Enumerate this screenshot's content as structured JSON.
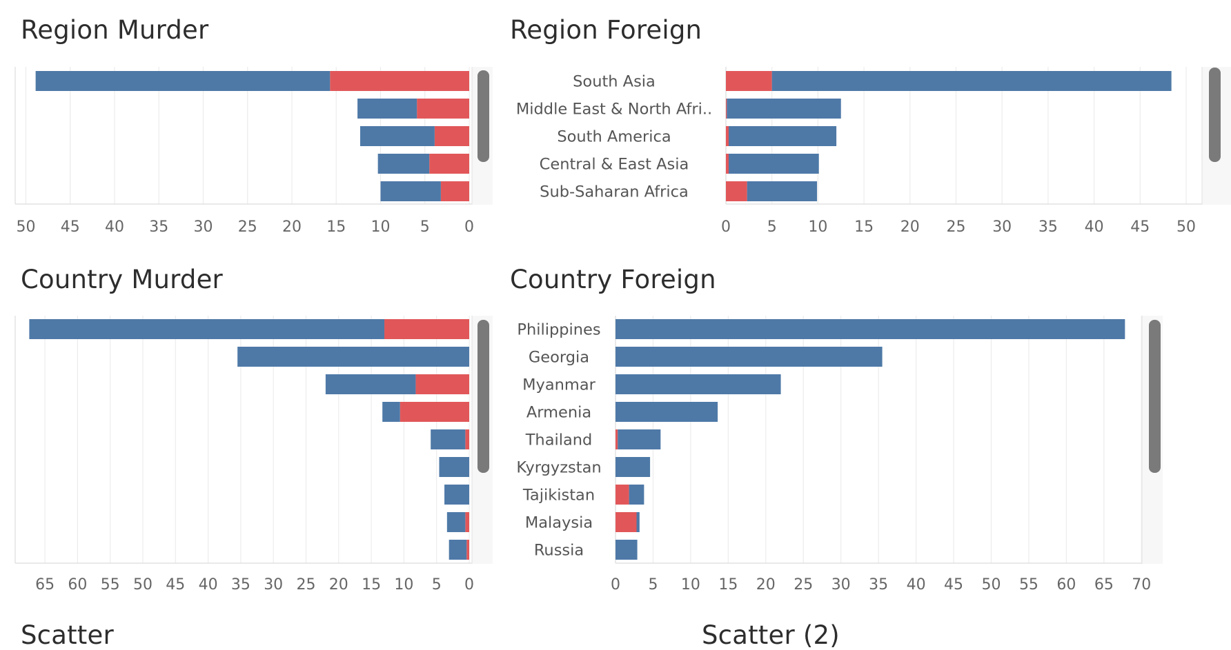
{
  "titles": {
    "region_murder": "Region Murder",
    "region_foreign": "Region Foreign",
    "country_murder": "Country Murder",
    "country_foreign": "Country Foreign",
    "scatter": "Scatter",
    "scatter2": "Scatter (2)"
  },
  "colors": {
    "blue": "#4e79a7",
    "red": "#e15759",
    "grid": "#ececec",
    "scrollbar": "#7a7a7a"
  },
  "chart_data": [
    {
      "id": "region_murder",
      "type": "bar",
      "orientation": "horizontal-reversed",
      "xlim": [
        0,
        50
      ],
      "ticks": [
        50,
        45,
        40,
        35,
        30,
        25,
        20,
        15,
        10,
        5,
        0
      ],
      "rows": [
        {
          "red": 15.7,
          "blue": 33.2
        },
        {
          "red": 5.9,
          "blue": 6.7
        },
        {
          "red": 3.9,
          "blue": 8.4
        },
        {
          "red": 4.5,
          "blue": 5.8
        },
        {
          "red": 3.2,
          "blue": 6.8
        }
      ]
    },
    {
      "id": "region_foreign",
      "type": "bar",
      "orientation": "horizontal",
      "xlim": [
        0,
        50
      ],
      "ticks": [
        0,
        5,
        10,
        15,
        20,
        25,
        30,
        35,
        40,
        45,
        50
      ],
      "categories": [
        "South Asia",
        "Middle East & North Afri..",
        "South America",
        "Central & East Asia",
        "Sub-Saharan Africa"
      ],
      "rows": [
        {
          "red": 5.0,
          "blue": 43.4
        },
        {
          "red": 0.1,
          "blue": 12.4
        },
        {
          "red": 0.3,
          "blue": 11.7
        },
        {
          "red": 0.3,
          "blue": 9.8
        },
        {
          "red": 2.3,
          "blue": 7.6
        }
      ]
    },
    {
      "id": "country_murder",
      "type": "bar",
      "orientation": "horizontal-reversed",
      "xlim": [
        0,
        70
      ],
      "ticks": [
        65,
        60,
        55,
        50,
        45,
        40,
        35,
        30,
        25,
        20,
        15,
        10,
        5,
        0
      ],
      "rows": [
        {
          "red": 13.0,
          "blue": 54.4
        },
        {
          "red": 0.0,
          "blue": 35.5
        },
        {
          "red": 8.2,
          "blue": 13.8
        },
        {
          "red": 10.6,
          "blue": 2.7
        },
        {
          "red": 0.6,
          "blue": 5.3
        },
        {
          "red": 0.0,
          "blue": 4.6
        },
        {
          "red": 0.0,
          "blue": 3.8
        },
        {
          "red": 0.6,
          "blue": 2.8
        },
        {
          "red": 0.4,
          "blue": 2.7
        }
      ]
    },
    {
      "id": "country_foreign",
      "type": "bar",
      "orientation": "horizontal",
      "xlim": [
        0,
        70
      ],
      "ticks": [
        0,
        5,
        10,
        15,
        20,
        25,
        30,
        35,
        40,
        45,
        50,
        55,
        60,
        65,
        70
      ],
      "categories": [
        "Philippines",
        "Georgia",
        "Myanmar",
        "Armenia",
        "Thailand",
        "Kyrgyzstan",
        "Tajikistan",
        "Malaysia",
        "Russia"
      ],
      "rows": [
        {
          "red": 0.0,
          "blue": 67.8
        },
        {
          "red": 0.0,
          "blue": 35.5
        },
        {
          "red": 0.0,
          "blue": 22.0
        },
        {
          "red": 0.0,
          "blue": 13.6
        },
        {
          "red": 0.3,
          "blue": 5.7
        },
        {
          "red": 0.0,
          "blue": 4.6
        },
        {
          "red": 1.8,
          "blue": 2.0
        },
        {
          "red": 2.8,
          "blue": 0.4
        },
        {
          "red": 0.0,
          "blue": 2.9
        }
      ]
    }
  ]
}
